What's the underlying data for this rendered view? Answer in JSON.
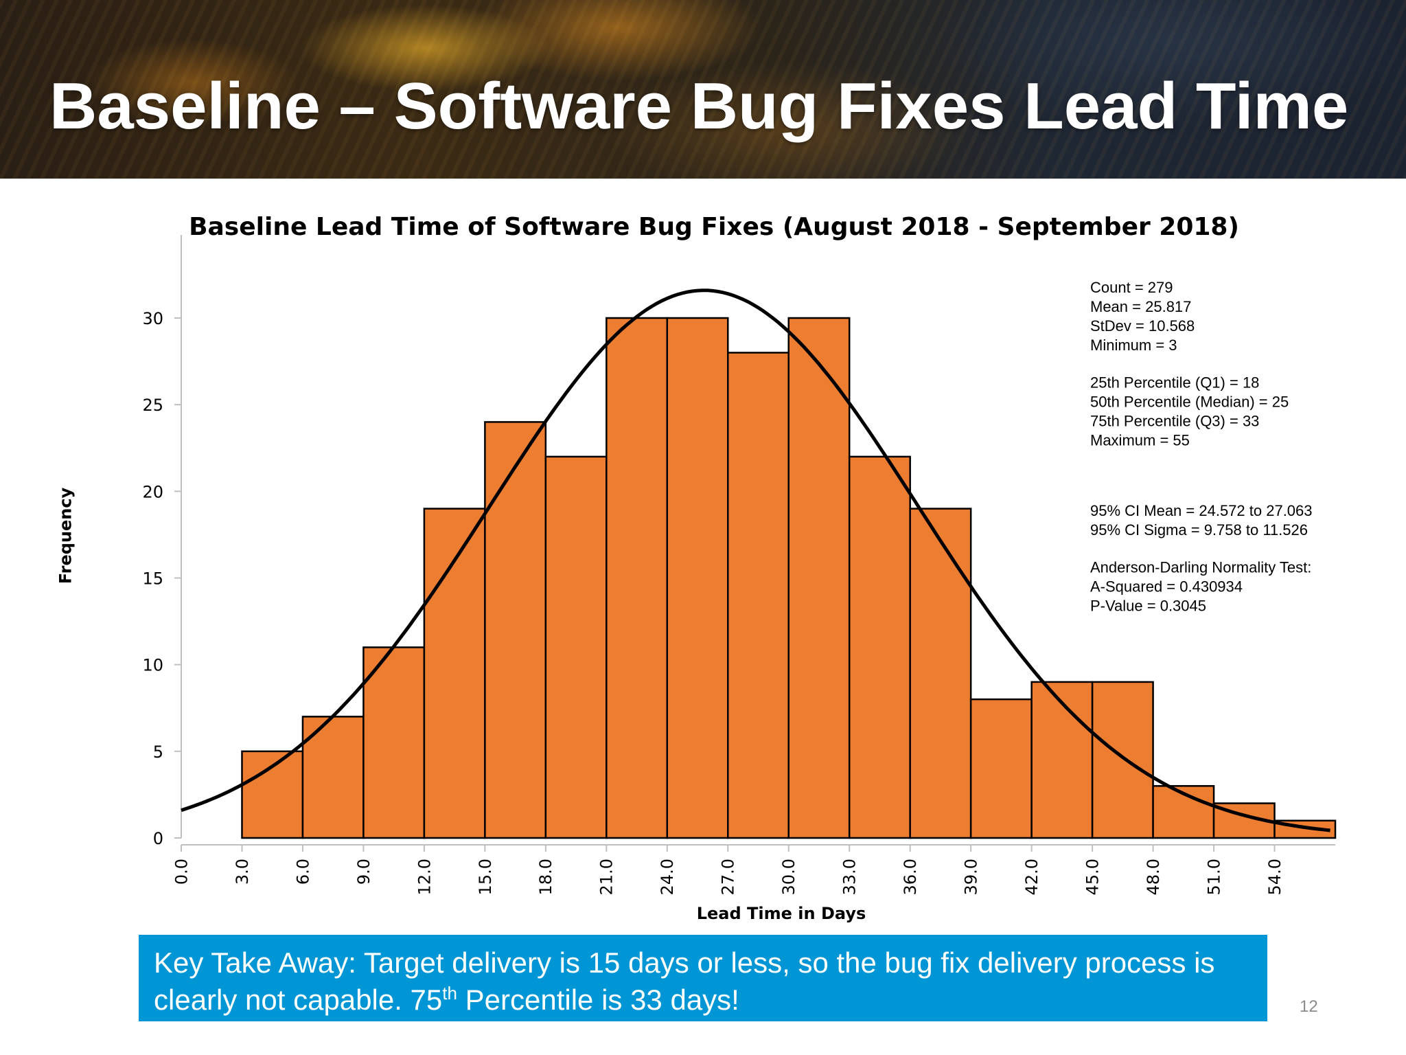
{
  "slide": {
    "title": "Baseline – Software Bug Fixes Lead Time",
    "page_number": "12",
    "takeaway": {
      "part1": "Key Take Away: Target delivery is 15 days or less, so the bug fix delivery process is clearly not capable. 75",
      "sup": "th",
      "part2": " Percentile is 33 days!"
    }
  },
  "chart_data": {
    "type": "bar",
    "title": "Baseline Lead Time of Software Bug Fixes (August 2018 - September 2018)",
    "xlabel": "Lead Time in Days",
    "ylabel": "Frequency",
    "bin_edges": [
      3,
      6,
      9,
      12,
      15,
      18,
      21,
      24,
      27,
      30,
      33,
      36,
      39,
      42,
      45,
      48,
      51,
      54,
      57
    ],
    "values": [
      5,
      7,
      11,
      19,
      24,
      22,
      30,
      30,
      28,
      30,
      22,
      19,
      8,
      9,
      9,
      3,
      2,
      1
    ],
    "x_ticks": [
      "0.0",
      "3.0",
      "6.0",
      "9.0",
      "12.0",
      "15.0",
      "18.0",
      "21.0",
      "24.0",
      "27.0",
      "30.0",
      "33.0",
      "36.0",
      "39.0",
      "42.0",
      "45.0",
      "48.0",
      "51.0",
      "54.0"
    ],
    "y_ticks": [
      0,
      5,
      10,
      15,
      20,
      25,
      30
    ],
    "xlim": [
      0,
      57
    ],
    "ylim": [
      0,
      35
    ],
    "fit_curve": {
      "type": "normal",
      "mean": 25.817,
      "stdev": 10.568,
      "count": 279,
      "bin_width": 3
    },
    "bar_color": "#ed7d31",
    "curve_color": "#000000",
    "stats_block_1": [
      "Count = 279",
      "Mean = 25.817",
      "StDev = 10.568",
      "Minimum = 3",
      "",
      "25th Percentile (Q1) = 18",
      "50th Percentile (Median) = 25",
      "75th Percentile (Q3) = 33",
      "Maximum = 55"
    ],
    "stats_block_2": [
      "95% CI Mean = 24.572 to 27.063",
      "95% CI Sigma = 9.758 to 11.526",
      "",
      "Anderson-Darling Normality Test:",
      "A-Squared = 0.430934",
      "P-Value = 0.3045"
    ]
  }
}
